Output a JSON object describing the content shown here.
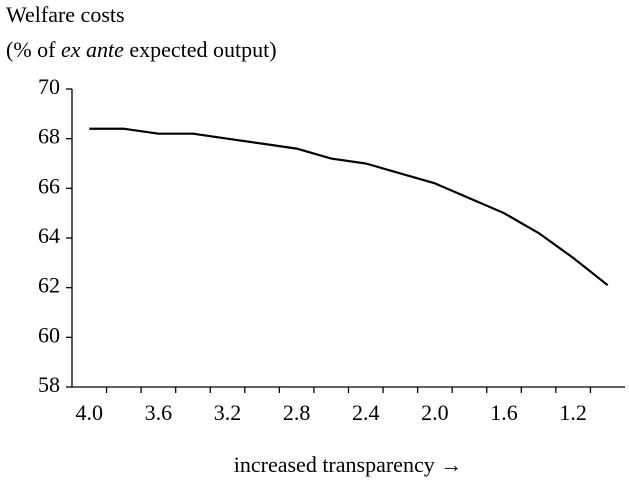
{
  "chart_data": {
    "type": "line",
    "title": "Welfare costs",
    "subtitle": {
      "before": "(% of ",
      "italic": "ex ante",
      "after": " expected output)"
    },
    "x_label": "increased transparency →",
    "categories": [
      "4.0",
      null,
      "3.6",
      null,
      "3.2",
      null,
      "2.8",
      null,
      "2.4",
      null,
      "2.0",
      null,
      "1.6",
      null,
      "1.2",
      null
    ],
    "series": [
      {
        "name": "Welfare costs",
        "color": "#000000",
        "values": [
          68.4,
          68.4,
          68.2,
          68.2,
          68.0,
          67.8,
          67.6,
          67.2,
          67.0,
          66.6,
          66.2,
          65.6,
          65.0,
          64.2,
          63.2,
          62.1
        ]
      }
    ],
    "ylim": [
      58,
      70
    ],
    "yticks": [
      58,
      60,
      62,
      64,
      66,
      68,
      70
    ],
    "grid": false
  }
}
